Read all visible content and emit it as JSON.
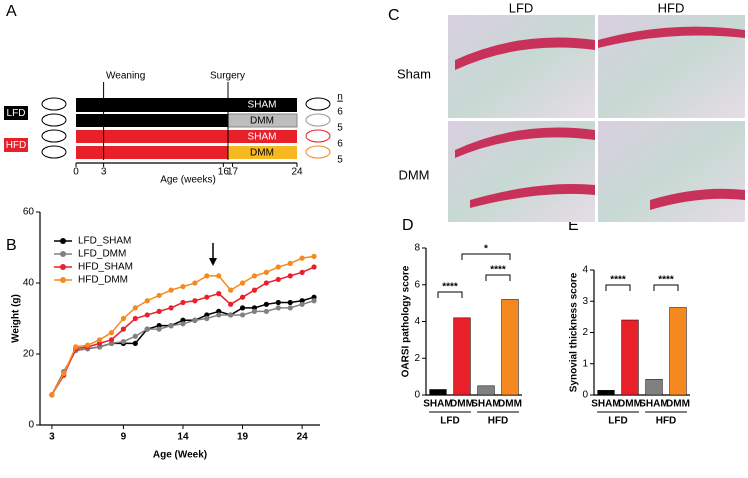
{
  "panel_labels": [
    "A",
    "B",
    "C",
    "D",
    "E"
  ],
  "panel_a": {
    "events": [
      "Weaning",
      "Surgery"
    ],
    "groups": [
      "LFD",
      "HFD"
    ],
    "bars": [
      "SHAM",
      "DMM",
      "SHAM",
      "DMM"
    ],
    "n_header": "n",
    "n": [
      6,
      5,
      6,
      5
    ],
    "xticks": [
      0,
      3,
      16,
      17,
      24
    ],
    "xlabel": "Age (weeks)"
  },
  "panel_c": {
    "columns": [
      "LFD",
      "HFD"
    ],
    "rows": [
      "Sham",
      "DMM"
    ]
  },
  "chart_data": [
    {
      "type": "line",
      "xlabel": "Age (Week)",
      "ylabel": "Weight (g)",
      "x": [
        3,
        4,
        5,
        6,
        7,
        8,
        9,
        10,
        11,
        12,
        13,
        14,
        15,
        16,
        17,
        18,
        19,
        20,
        21,
        22,
        23,
        24,
        25
      ],
      "series": [
        {
          "name": "LFD_SHAM",
          "color": "#000000",
          "values": [
            8.5,
            15,
            21,
            21.5,
            22,
            23,
            23,
            23,
            27,
            28,
            28,
            29.5,
            29.5,
            31,
            32,
            31,
            33,
            33,
            34,
            34.5,
            34.5,
            35,
            36
          ]
        },
        {
          "name": "LFD_DMM",
          "color": "#808080",
          "values": [
            8.5,
            15,
            21,
            21.5,
            22,
            23,
            23.5,
            25,
            27,
            27,
            28,
            28.5,
            29.5,
            30,
            31,
            31,
            31,
            32,
            32,
            33,
            33,
            34,
            35
          ]
        },
        {
          "name": "HFD_SHAM",
          "color": "#e8202a",
          "values": [
            8.5,
            14,
            21.5,
            22,
            23,
            24,
            27,
            30,
            31,
            32,
            33,
            34.5,
            35,
            36,
            37,
            34,
            36,
            38,
            40,
            41,
            42,
            43,
            44.5
          ]
        },
        {
          "name": "HFD_DMM",
          "color": "#f5891f",
          "values": [
            8.5,
            14.5,
            22,
            22.5,
            24,
            26,
            30,
            33,
            35,
            36.5,
            38,
            39,
            40,
            42,
            42,
            38,
            40,
            42,
            43,
            44.5,
            45.5,
            47,
            47.5
          ]
        }
      ],
      "xlim": [
        2,
        25.5
      ],
      "ylim": [
        0,
        60
      ],
      "xticks": [
        3,
        9,
        14,
        19,
        24
      ],
      "yticks": [
        0,
        20,
        40,
        60
      ]
    },
    {
      "type": "bar",
      "ylabel": "OARSI pathology score",
      "categories": [
        "SHAM",
        "DMM",
        "SHAM",
        "DMM"
      ],
      "groups": [
        "LFD",
        "HFD"
      ],
      "values": [
        0.3,
        4.2,
        0.5,
        5.2
      ],
      "colors": [
        "#000000",
        "#e8202a",
        "#808080",
        "#f5891f"
      ],
      "ylim": [
        0,
        8
      ],
      "yticks": [
        0,
        2,
        4,
        6,
        8
      ],
      "annotations": [
        "****",
        "****",
        "*"
      ]
    },
    {
      "type": "bar",
      "ylabel": "Synovial thickness score",
      "categories": [
        "SHAM",
        "DMM",
        "SHAM",
        "DMM"
      ],
      "groups": [
        "LFD",
        "HFD"
      ],
      "values": [
        0.15,
        2.4,
        0.5,
        2.8
      ],
      "colors": [
        "#000000",
        "#e8202a",
        "#808080",
        "#f5891f"
      ],
      "ylim": [
        0,
        4
      ],
      "yticks": [
        0,
        1,
        2,
        3,
        4
      ],
      "annotations": [
        "****",
        "****"
      ]
    }
  ]
}
